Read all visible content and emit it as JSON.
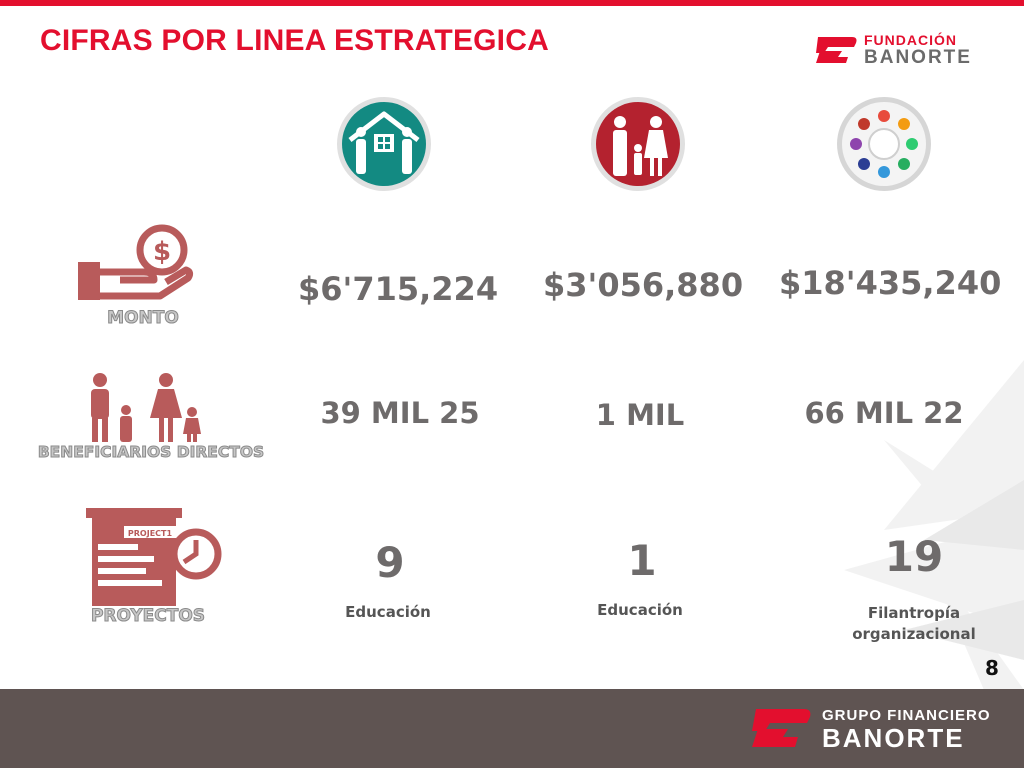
{
  "header": {
    "title": "CIFRAS POR LINEA ESTRATEGICA",
    "logo_line1": "FUNDACIÓN",
    "logo_line2": "BANORTE"
  },
  "colors": {
    "accent": "#e30f2e",
    "teal": "#138a82",
    "crimson": "#b4222f",
    "muted_red": "#b85b5b",
    "footer": "#5f5452"
  },
  "columns": [
    {
      "icon": "family-home-icon"
    },
    {
      "icon": "family-icon"
    },
    {
      "icon": "community-circle-icon"
    }
  ],
  "rows": {
    "monto": {
      "label": "MONTO",
      "icon": "money-hand-icon",
      "values": [
        "$6'715,224",
        "$3'056,880",
        "$18'435,240"
      ]
    },
    "beneficiarios": {
      "label": "BENEFICIARIOS DIRECTOS",
      "icon": "people-icon",
      "values": [
        "39 MIL 25",
        "1 MIL",
        "66 MIL 22"
      ]
    },
    "proyectos": {
      "label": "PROYECTOS",
      "icon": "project-clock-icon",
      "project_tag": "PROJECT1",
      "values": [
        "9",
        "1",
        "19"
      ],
      "captions": [
        "Educación",
        "Educación",
        "Filantropía organizacional"
      ]
    }
  },
  "page_number": "8",
  "footer": {
    "line1": "GRUPO FINANCIERO",
    "line2": "BANORTE"
  }
}
